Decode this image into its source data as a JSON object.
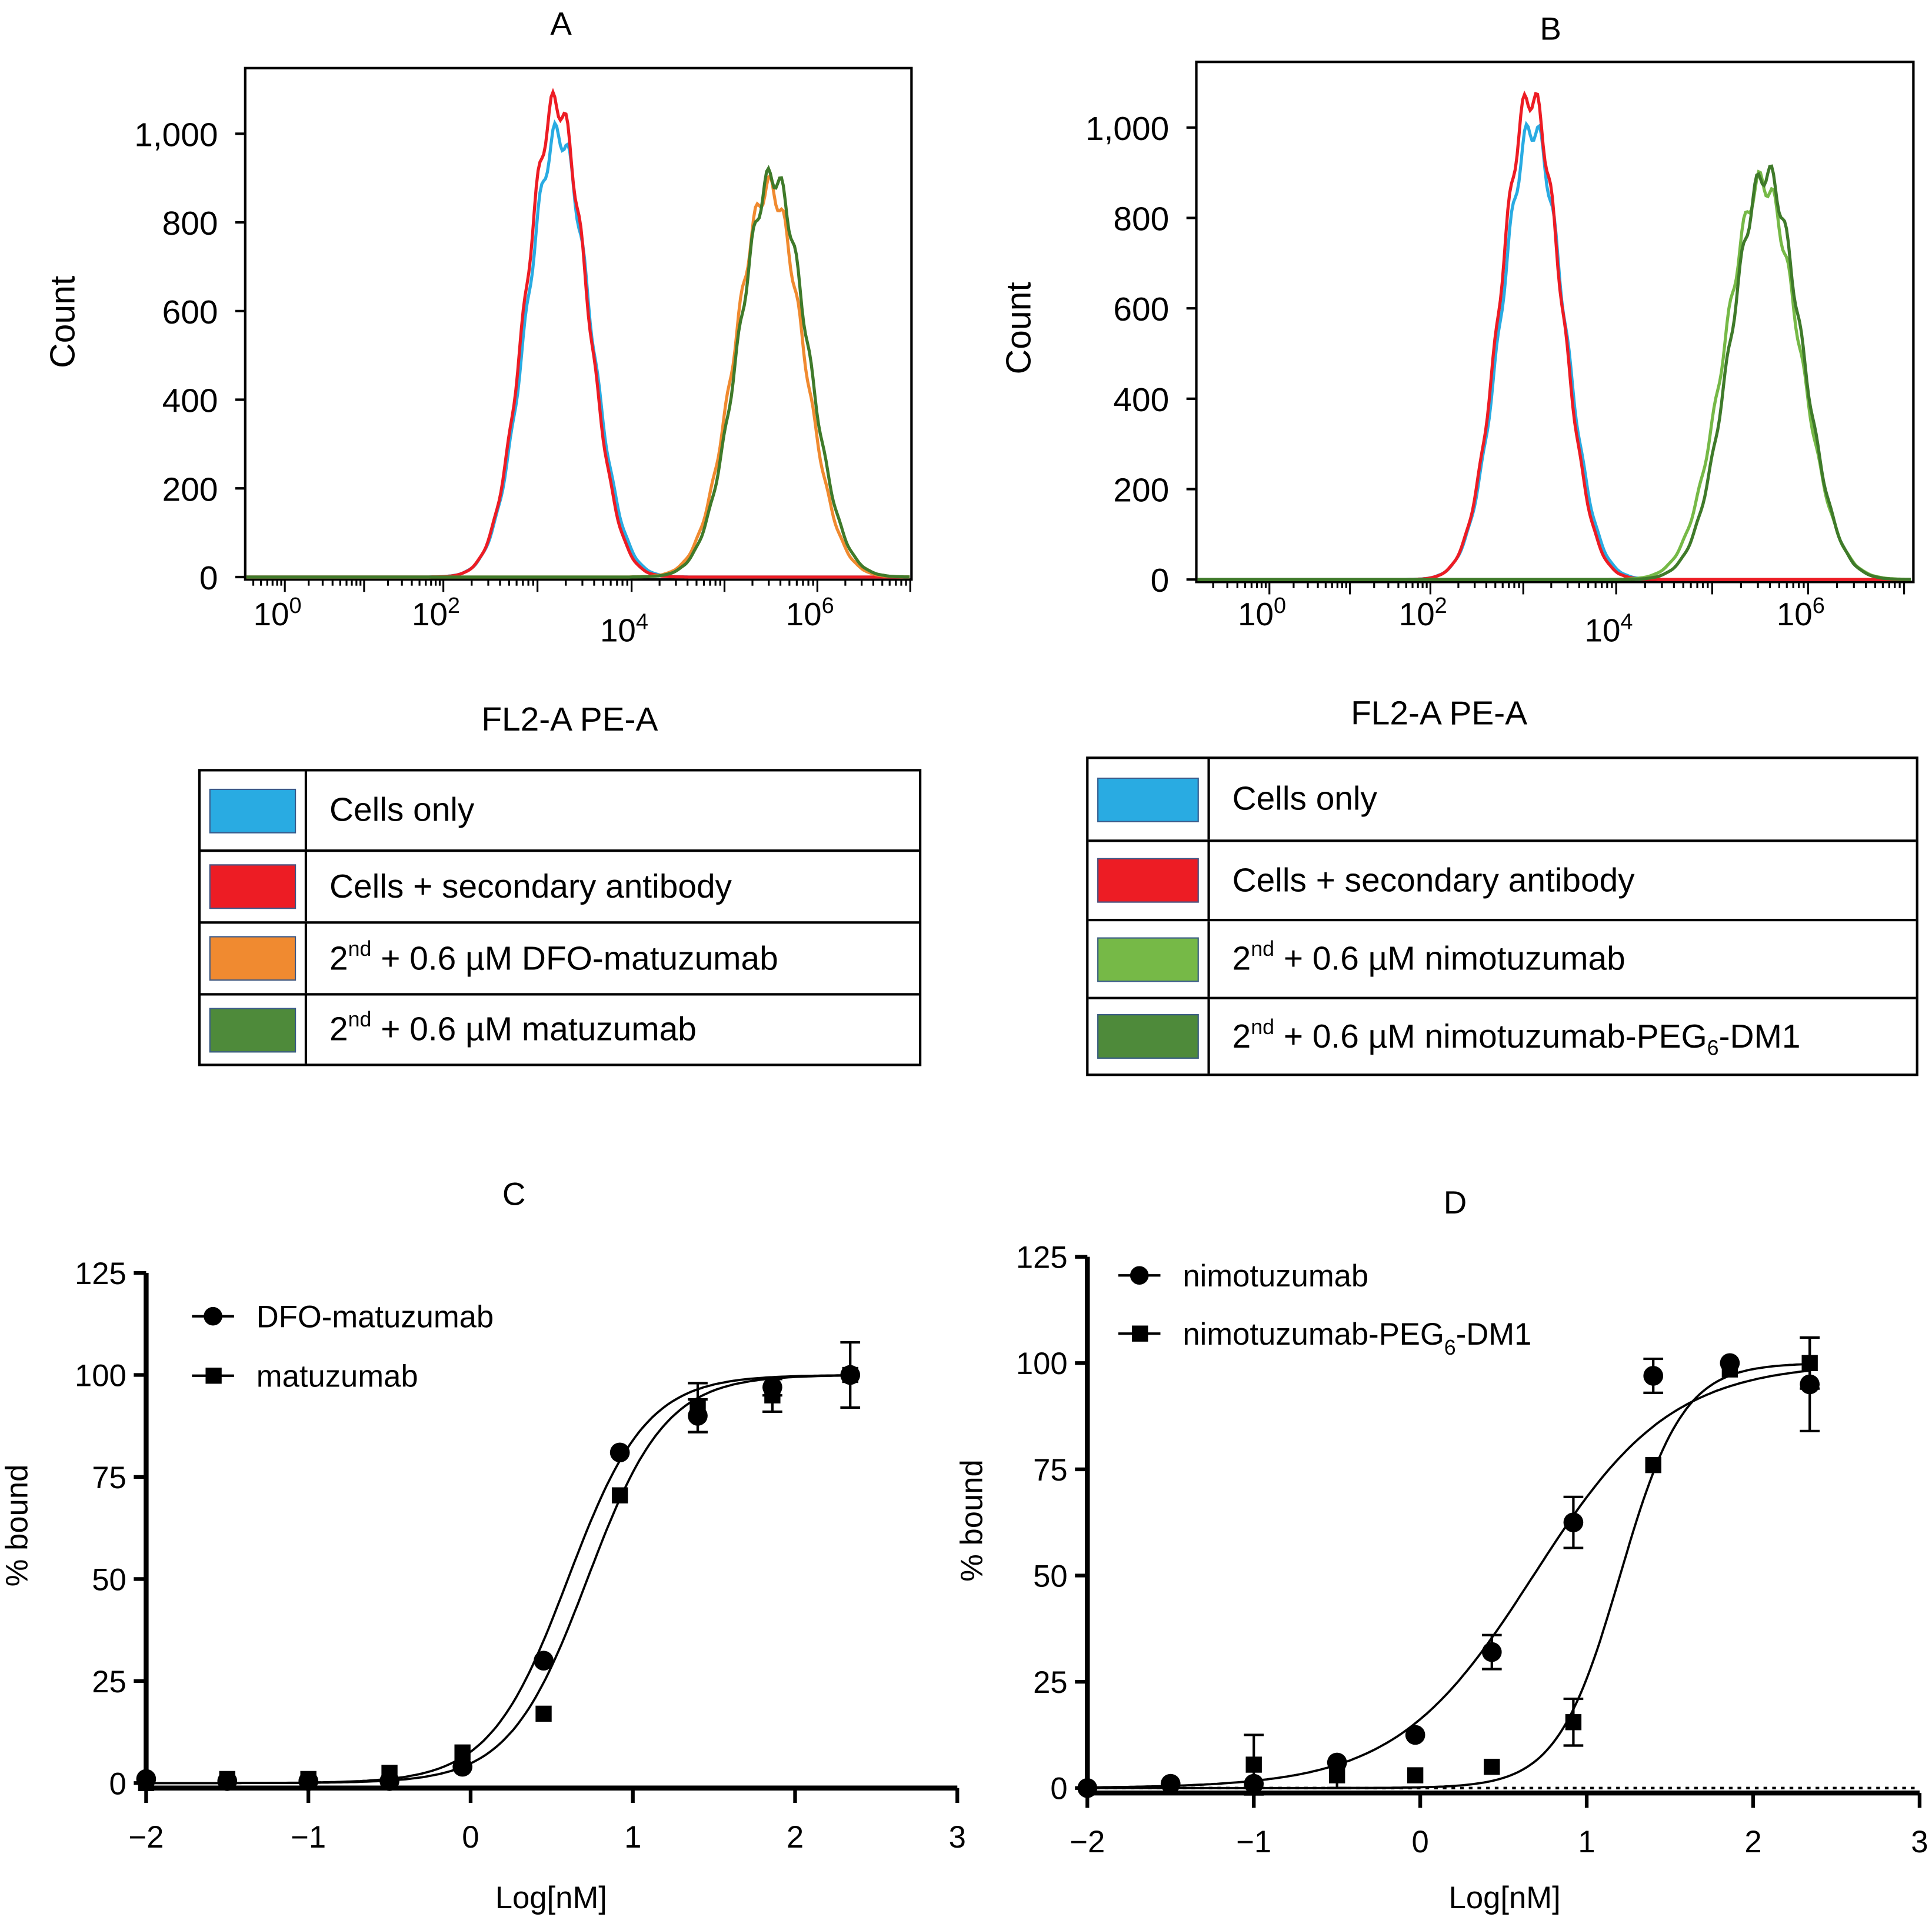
{
  "chart_data": [
    {
      "panel": "A",
      "type": "histogram",
      "title": "A",
      "xlabel": "FL2-A  PE-A",
      "ylabel": "Count",
      "xscale": "log",
      "xticks": [
        {
          "exp": "0",
          "base": "10"
        },
        {
          "exp": "2",
          "base": "10"
        },
        {
          "exp": "4",
          "base": "10"
        },
        {
          "exp": "6",
          "base": "10"
        }
      ],
      "yticks": [
        "0",
        "200",
        "400",
        "600",
        "800",
        "1,000"
      ],
      "ylim": [
        0,
        1150
      ],
      "series": [
        {
          "name": "Cells only",
          "color": "#29abe2",
          "peak_log10": 3.22,
          "peak_count": 1000,
          "width_log10": 0.33
        },
        {
          "name": "Cells + secondary antibody",
          "color": "#ed1c24",
          "peak_log10": 3.2,
          "peak_count": 1070,
          "width_log10": 0.32
        },
        {
          "name": "2nd + 0.6 µM DFO-matuzumab",
          "color": "#f08a30",
          "peak_log10": 5.48,
          "peak_count": 880,
          "width_log10": 0.36
        },
        {
          "name": "2nd + 0.6 µM matuzumab",
          "color": "#3f7a2a",
          "peak_log10": 5.52,
          "peak_count": 905,
          "width_log10": 0.36
        }
      ],
      "legend": [
        {
          "color": "#29abe2",
          "text": "Cells only"
        },
        {
          "color": "#ed1c24",
          "text": "Cells + secondary antibody"
        },
        {
          "color": "#f08a30",
          "pre": "2",
          "sup": "nd",
          "text": " + 0.6 µM DFO-matuzumab"
        },
        {
          "color": "#4e8a3a",
          "pre": "2",
          "sup": "nd",
          "text": " + 0.6 µM matuzumab"
        }
      ]
    },
    {
      "panel": "B",
      "type": "histogram",
      "title": "B",
      "xlabel": "FL2-A  PE-A",
      "ylabel": "Count",
      "xscale": "log",
      "xticks": [
        {
          "exp": "0",
          "base": "10"
        },
        {
          "exp": "2",
          "base": "10"
        },
        {
          "exp": "4",
          "base": "10"
        },
        {
          "exp": "6",
          "base": "10"
        }
      ],
      "yticks": [
        "0",
        "200",
        "400",
        "600",
        "800",
        "1,000"
      ],
      "ylim": [
        0,
        1150
      ],
      "series": [
        {
          "name": "Cells only",
          "color": "#29abe2",
          "peak_log10": 3.1,
          "peak_count": 1000,
          "width_log10": 0.33
        },
        {
          "name": "Cells + secondary antibody",
          "color": "#ed1c24",
          "peak_log10": 3.08,
          "peak_count": 1070,
          "width_log10": 0.32
        },
        {
          "name": "2nd + 0.6 µM nimotuzumab",
          "color": "#76b947",
          "peak_log10": 5.52,
          "peak_count": 880,
          "width_log10": 0.38
        },
        {
          "name": "2nd + 0.6 µM nimotuzumab-PEG6-DM1",
          "color": "#3f7a2a",
          "peak_log10": 5.56,
          "peak_count": 900,
          "width_log10": 0.36
        }
      ],
      "legend": [
        {
          "color": "#29abe2",
          "text": "Cells only"
        },
        {
          "color": "#ed1c24",
          "text": "Cells + secondary antibody"
        },
        {
          "color": "#76b947",
          "pre": "2",
          "sup": "nd",
          "text": " + 0.6 µM nimotuzumab"
        },
        {
          "color": "#4e8a3a",
          "pre": "2",
          "sup": "nd",
          "text": " + 0.6 µM nimotuzumab-PEG",
          "sub": "6",
          "post": "-DM1"
        }
      ]
    },
    {
      "panel": "C",
      "type": "scatter",
      "title": "C",
      "xlabel": "Log[nM]",
      "ylabel": "% bound",
      "xlim": [
        -2,
        3
      ],
      "ylim": [
        0,
        125
      ],
      "xticks": [
        "−2",
        "−1",
        "0",
        "1",
        "2",
        "3"
      ],
      "yticks": [
        "0",
        "25",
        "50",
        "75",
        "100",
        "125"
      ],
      "series": [
        {
          "name": "DFO-matuzumab",
          "marker": "circle",
          "x": [
            -2,
            -1.5,
            -1,
            -0.5,
            -0.05,
            0.45,
            0.92,
            1.4,
            1.86,
            2.34
          ],
          "y": [
            1,
            0.5,
            0.5,
            0.5,
            4,
            30,
            81,
            90,
            97,
            100
          ],
          "err": [
            0,
            0,
            0,
            0,
            0,
            0,
            0,
            4,
            2,
            0
          ],
          "fit": {
            "bottom": 0,
            "top": 100,
            "logEC50": 0.6,
            "hill": 1.8
          }
        },
        {
          "name": "matuzumab",
          "marker": "square",
          "x": [
            -2,
            -1.5,
            -1,
            -0.5,
            -0.05,
            0.45,
            0.92,
            1.4,
            1.86,
            2.34
          ],
          "y": [
            0,
            1,
            1,
            2.5,
            7.5,
            17,
            70.5,
            92,
            95,
            100
          ],
          "err": [
            0,
            0,
            0,
            0,
            0,
            0,
            0,
            6,
            4,
            8
          ],
          "fit": {
            "bottom": 0,
            "top": 100,
            "logEC50": 0.72,
            "hill": 1.8
          }
        }
      ]
    },
    {
      "panel": "D",
      "type": "scatter",
      "title": "D",
      "xlabel": "Log[nM]",
      "ylabel": "% bound",
      "xlim": [
        -2,
        3
      ],
      "ylim": [
        0,
        125
      ],
      "xticks": [
        "−2",
        "−1",
        "0",
        "1",
        "2",
        "3"
      ],
      "yticks": [
        "0",
        "25",
        "50",
        "75",
        "100",
        "125"
      ],
      "series": [
        {
          "name": "nimotuzumab",
          "marker": "circle",
          "x": [
            -2,
            -1.5,
            -1,
            -0.5,
            -0.03,
            0.43,
            0.92,
            1.4,
            1.86,
            2.34
          ],
          "y": [
            0,
            1,
            1,
            6,
            12.5,
            32,
            62.5,
            97,
            100,
            95
          ],
          "err": [
            0,
            0,
            0,
            0,
            0,
            4,
            6,
            4,
            0,
            11
          ],
          "fit": {
            "bottom": 0,
            "top": 100,
            "logEC50": 0.68,
            "hill": 1.05
          }
        },
        {
          "name": "nimotuzumab-PEG6-DM1",
          "label_pre": "nimotuzumab-PEG",
          "label_sub": "6",
          "label_post": "-DM1",
          "marker": "square",
          "x": [
            -1,
            -0.5,
            -0.03,
            0.43,
            0.92,
            1.4,
            1.86,
            2.34
          ],
          "y": [
            5.5,
            3,
            3,
            5,
            15.5,
            76,
            98.5,
            100
          ],
          "err": [
            7,
            3,
            0,
            0,
            5.5,
            0,
            0,
            6
          ],
          "fit": {
            "bottom": 0,
            "top": 100,
            "logEC50": 1.2,
            "hill": 2.3
          }
        }
      ]
    }
  ]
}
